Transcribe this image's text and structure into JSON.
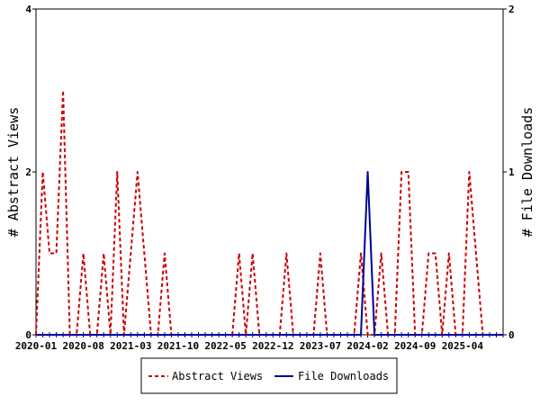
{
  "chart_data": {
    "type": "line",
    "x": [
      "2020-01",
      "2020-02",
      "2020-03",
      "2020-04",
      "2020-05",
      "2020-06",
      "2020-07",
      "2020-08",
      "2020-09",
      "2020-10",
      "2020-11",
      "2020-12",
      "2021-01",
      "2021-02",
      "2021-03",
      "2021-04",
      "2021-05",
      "2021-06",
      "2021-07",
      "2021-08",
      "2021-09",
      "2021-10",
      "2021-11",
      "2021-12",
      "2022-01",
      "2022-02",
      "2022-03",
      "2022-04",
      "2022-05",
      "2022-06",
      "2022-07",
      "2022-08",
      "2022-09",
      "2022-10",
      "2022-11",
      "2022-12",
      "2023-01",
      "2023-02",
      "2023-03",
      "2023-04",
      "2023-05",
      "2023-06",
      "2023-07",
      "2023-08",
      "2023-09",
      "2023-10",
      "2023-11",
      "2023-12",
      "2024-01",
      "2024-02",
      "2024-03",
      "2024-04",
      "2024-05",
      "2024-06",
      "2024-07",
      "2024-08",
      "2024-09",
      "2024-10",
      "2024-11",
      "2024-12",
      "2025-01",
      "2025-02",
      "2025-03",
      "2025-04",
      "2025-05",
      "2025-06",
      "2025-07",
      "2025-08",
      "2025-09",
      "2025-10"
    ],
    "x_tick_labels": [
      "2020-01",
      "2020-08",
      "2021-03",
      "2021-10",
      "2022-05",
      "2022-12",
      "2023-07",
      "2024-02",
      "2024-09",
      "2025-04"
    ],
    "series": [
      {
        "name": "Abstract Views",
        "axis": "left",
        "color": "#cc0000",
        "style": "dashed",
        "values": [
          0,
          2,
          1,
          1,
          3,
          0,
          0,
          1,
          0,
          0,
          1,
          0,
          2,
          0,
          1,
          2,
          1,
          0,
          0,
          1,
          0,
          0,
          0,
          0,
          0,
          0,
          0,
          0,
          0,
          0,
          1,
          0,
          1,
          0,
          0,
          0,
          0,
          1,
          0,
          0,
          0,
          0,
          1,
          0,
          0,
          0,
          0,
          0,
          1,
          0,
          0,
          1,
          0,
          0,
          2,
          2,
          0,
          0,
          1,
          1,
          0,
          1,
          0,
          0,
          2,
          1,
          0,
          0,
          0,
          0
        ]
      },
      {
        "name": "File Downloads",
        "axis": "right",
        "color": "#000099",
        "style": "solid",
        "values": [
          0,
          0,
          0,
          0,
          0,
          0,
          0,
          0,
          0,
          0,
          0,
          0,
          0,
          0,
          0,
          0,
          0,
          0,
          0,
          0,
          0,
          0,
          0,
          0,
          0,
          0,
          0,
          0,
          0,
          0,
          0,
          0,
          0,
          0,
          0,
          0,
          0,
          0,
          0,
          0,
          0,
          0,
          0,
          0,
          0,
          0,
          0,
          0,
          0,
          1,
          0,
          0,
          0,
          0,
          0,
          0,
          0,
          0,
          0,
          0,
          0,
          0,
          0,
          0,
          0,
          0,
          0,
          0,
          0,
          0
        ]
      }
    ],
    "ylabel": "# Abstract Views",
    "y2label": "# File Downloads",
    "ylim": [
      0,
      4
    ],
    "y2lim": [
      0,
      2
    ],
    "yticks": [
      "0",
      "2",
      "4"
    ],
    "y2ticks": [
      "0",
      "1",
      "2"
    ],
    "legend_position": "bottom-center",
    "grid": false
  }
}
